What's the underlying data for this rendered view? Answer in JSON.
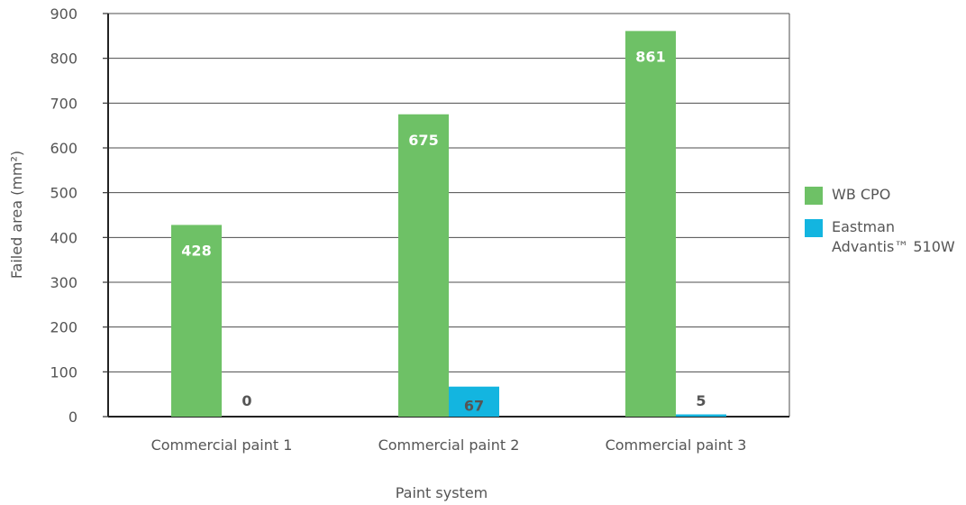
{
  "chart_data": {
    "type": "bar",
    "xlabel": "Paint system",
    "ylabel": "Failed area (mm²)",
    "ylim": [
      0,
      900
    ],
    "yticks": [
      0,
      100,
      200,
      300,
      400,
      500,
      600,
      700,
      800,
      900
    ],
    "categories": [
      "Commercial paint 1",
      "Commercial paint 2",
      "Commercial paint 3"
    ],
    "grid": "horizontal",
    "legend_position": "right",
    "series": [
      {
        "name": "WB CPO",
        "color": "#6ec166",
        "values": [
          428,
          675,
          861
        ],
        "labels": [
          "428",
          "675",
          "861"
        ],
        "label_color": "#ffffff"
      },
      {
        "name": "Eastman Advantis™ 510W",
        "color": "#13b5e0",
        "values": [
          0,
          67,
          5
        ],
        "labels": [
          "0",
          "67",
          "5"
        ],
        "label_color": "#555555"
      }
    ]
  },
  "legend": {
    "items": [
      {
        "lines": [
          "WB CPO"
        ],
        "color": "#6ec166"
      },
      {
        "lines": [
          "Eastman",
          "Advantis™ 510W"
        ],
        "color": "#13b5e0"
      }
    ]
  }
}
